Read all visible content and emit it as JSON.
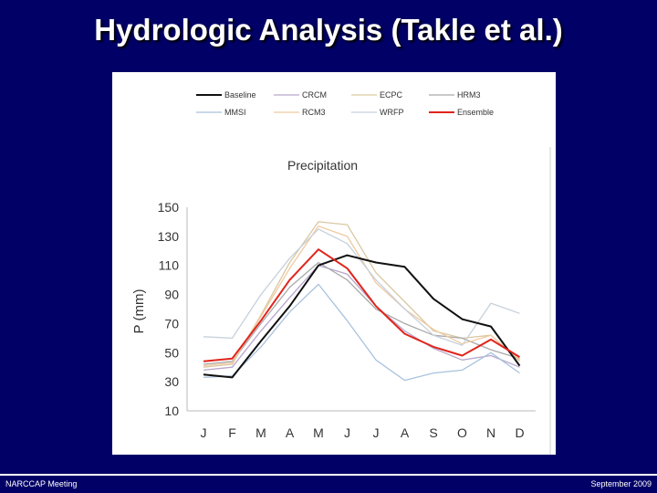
{
  "slide": {
    "title": "Hydrologic Analysis (Takle et al.)",
    "footer_left": "NARCCAP Meeting",
    "footer_right": "September 2009",
    "background_color": "#000066"
  },
  "chart_data": {
    "type": "line",
    "title": "Precipitation",
    "xlabel": "",
    "ylabel": "P (mm)",
    "categories": [
      "J",
      "F",
      "M",
      "A",
      "M",
      "J",
      "J",
      "A",
      "S",
      "O",
      "N",
      "D"
    ],
    "yticks": [
      10,
      30,
      50,
      70,
      90,
      110,
      130,
      150
    ],
    "ylim": [
      10,
      150
    ],
    "grid": false,
    "legend_position": "top",
    "series": [
      {
        "name": "Baseline",
        "color": "#111111",
        "width": 2,
        "values": [
          35,
          33,
          58,
          82,
          110,
          117,
          112,
          109,
          87,
          73,
          68,
          41
        ]
      },
      {
        "name": "CRCM",
        "color": "#b8a6cc",
        "width": 1.3,
        "values": [
          38,
          40,
          65,
          88,
          110,
          104,
          82,
          65,
          53,
          45,
          48,
          40
        ]
      },
      {
        "name": "ECPC",
        "color": "#d9c9a1",
        "width": 1.3,
        "values": [
          40,
          42,
          76,
          112,
          140,
          138,
          105,
          85,
          65,
          60,
          62,
          44
        ]
      },
      {
        "name": "HRM3",
        "color": "#a9a9a9",
        "width": 1.3,
        "values": [
          42,
          44,
          70,
          95,
          112,
          100,
          80,
          70,
          62,
          60,
          52,
          46
        ]
      },
      {
        "name": "MMSI",
        "color": "#a9c2de",
        "width": 1.3,
        "values": [
          33,
          34,
          54,
          78,
          97,
          72,
          45,
          31,
          36,
          38,
          50,
          36
        ]
      },
      {
        "name": "RCM3",
        "color": "#f0c9a0",
        "width": 1.3,
        "values": [
          41,
          43,
          75,
          108,
          137,
          130,
          98,
          80,
          66,
          56,
          62,
          45
        ]
      },
      {
        "name": "WRFP",
        "color": "#c6d0dc",
        "width": 1.3,
        "values": [
          61,
          60,
          90,
          115,
          135,
          125,
          100,
          80,
          62,
          55,
          84,
          77
        ]
      },
      {
        "name": "Ensemble",
        "color": "#e0241b",
        "width": 2,
        "values": [
          44,
          46,
          72,
          100,
          121,
          108,
          82,
          63,
          54,
          48,
          59,
          47
        ]
      }
    ]
  }
}
